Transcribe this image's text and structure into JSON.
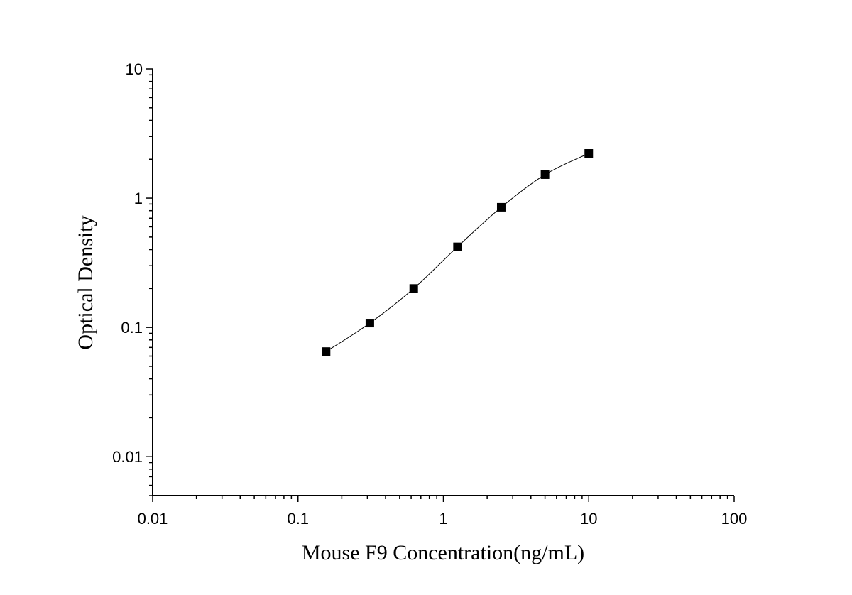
{
  "chart_data": {
    "type": "scatter",
    "xlabel": "Mouse F9 Concentration(ng/mL)",
    "ylabel": "Optical Density",
    "xscale": "log",
    "yscale": "log",
    "xlim": [
      0.01,
      100
    ],
    "ylim": [
      0.005,
      10
    ],
    "x_ticks": [
      {
        "value": 0.01,
        "label": "0.01"
      },
      {
        "value": 0.1,
        "label": "0.1"
      },
      {
        "value": 1,
        "label": "1"
      },
      {
        "value": 10,
        "label": "10"
      },
      {
        "value": 100,
        "label": "100"
      }
    ],
    "y_ticks": [
      {
        "value": 0.01,
        "label": "0.01"
      },
      {
        "value": 0.1,
        "label": "0.1"
      },
      {
        "value": 1,
        "label": "1"
      },
      {
        "value": 10,
        "label": "10"
      }
    ],
    "grid": false,
    "legend": "none",
    "series": [
      {
        "marker": "square",
        "color": "#000000",
        "points": [
          {
            "x": 0.156,
            "y": 0.065
          },
          {
            "x": 0.312,
            "y": 0.108
          },
          {
            "x": 0.625,
            "y": 0.2
          },
          {
            "x": 1.25,
            "y": 0.42
          },
          {
            "x": 2.5,
            "y": 0.85
          },
          {
            "x": 5,
            "y": 1.52
          },
          {
            "x": 10,
            "y": 2.22
          }
        ]
      }
    ],
    "fit_curve": {
      "type": "four-parameter logistic",
      "color": "#000000",
      "x_range": [
        0.156,
        10
      ]
    }
  }
}
